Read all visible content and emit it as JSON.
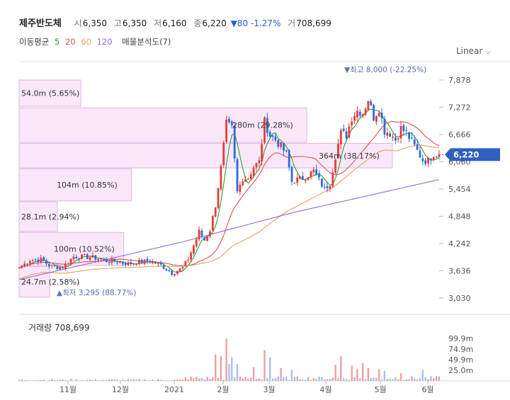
{
  "header": {
    "name": "제주반도체",
    "open_label": "시",
    "open": "6,350",
    "high_label": "고",
    "high": "6,350",
    "low_label": "저",
    "low": "6,160",
    "close_label": "종",
    "close": "6,220",
    "change": "▼80 -1.27%",
    "volume_label": "거",
    "volume": "708,699"
  },
  "legend": {
    "title": "이동평균",
    "ma5": "5",
    "ma20": "20",
    "ma60": "60",
    "ma120": "120",
    "vp": "매물분석도(7)",
    "colors": {
      "ma5": "#2e9e2e",
      "ma20": "#e05050",
      "ma60": "#e8a060",
      "ma120": "#8e6ad8"
    }
  },
  "scale_button": "Linear",
  "colors": {
    "up": "#e83a3a",
    "down": "#2f6ad8",
    "current_tag": "#2f5fc0",
    "vp_fill": "#fae8fa",
    "vp_stroke": "#dfb6df"
  },
  "chart_data": {
    "type": "candlestick",
    "y_ticks": [
      "7,878",
      "7,272",
      "6,666",
      "6,060",
      "5,454",
      "4,848",
      "4,242",
      "3,636",
      "3,030"
    ],
    "ylim": [
      3030,
      7878
    ],
    "x_ticks": [
      "11월",
      "12월",
      "2021",
      "2월",
      "3월",
      "4월",
      "5월",
      "6월"
    ],
    "current_price": "6,220",
    "max_marker": "▼최고 8,000 (-22.25%)",
    "min_marker": "▲최저 3,295 (88.77%)",
    "volume_title": "거래량",
    "volume_value": "708,699",
    "volume_ticks": [
      "99.9m",
      "74.9m",
      "49.9m",
      "25.0m"
    ],
    "volume_profile": [
      {
        "label": "54.0m (5.65%)",
        "lo": 7295,
        "hi": 7878
      },
      {
        "label": "280m (29.28%)",
        "lo": 6495,
        "hi": 7260
      },
      {
        "label": "364m (38.17%)",
        "lo": 5923,
        "hi": 6470
      },
      {
        "label": "104m (10.85%)",
        "lo": 5190,
        "hi": 5900
      },
      {
        "label": "28.1m (2.94%)",
        "lo": 4515,
        "hi": 5170
      },
      {
        "label": "100m (10.52%)",
        "lo": 3755,
        "hi": 4490
      },
      {
        "label": "24.7m (2.58%)",
        "lo": 3050,
        "hi": 3730
      }
    ],
    "anchors": [
      [
        0,
        3700
      ],
      [
        4,
        3880
      ],
      [
        8,
        3880
      ],
      [
        12,
        3720
      ],
      [
        16,
        3720
      ],
      [
        20,
        3950
      ],
      [
        24,
        3950
      ],
      [
        28,
        3920
      ],
      [
        32,
        3860
      ],
      [
        36,
        3840
      ],
      [
        40,
        3790
      ],
      [
        44,
        3830
      ],
      [
        48,
        3850
      ],
      [
        52,
        3760
      ],
      [
        56,
        3590
      ],
      [
        60,
        3700
      ],
      [
        62,
        3900
      ],
      [
        64,
        4200
      ],
      [
        66,
        4500
      ],
      [
        68,
        4320
      ],
      [
        70,
        4550
      ],
      [
        72,
        5100
      ],
      [
        74,
        5920
      ],
      [
        76,
        6900
      ],
      [
        78,
        6800
      ],
      [
        80,
        5380
      ],
      [
        82,
        5700
      ],
      [
        84,
        5700
      ],
      [
        86,
        5950
      ],
      [
        88,
        6050
      ],
      [
        90,
        6950
      ],
      [
        92,
        6650
      ],
      [
        94,
        6550
      ],
      [
        96,
        6400
      ],
      [
        98,
        6220
      ],
      [
        100,
        5620
      ],
      [
        104,
        5700
      ],
      [
        108,
        5850
      ],
      [
        112,
        5450
      ],
      [
        114,
        5600
      ],
      [
        116,
        6200
      ],
      [
        118,
        6700
      ],
      [
        120,
        6650
      ],
      [
        122,
        7050
      ],
      [
        124,
        7200
      ],
      [
        126,
        7150
      ],
      [
        128,
        7450
      ],
      [
        130,
        7050
      ],
      [
        132,
        7250
      ],
      [
        134,
        6750
      ],
      [
        136,
        6700
      ],
      [
        138,
        6550
      ],
      [
        140,
        6800
      ],
      [
        142,
        6700
      ],
      [
        144,
        6500
      ],
      [
        146,
        6300
      ],
      [
        148,
        6100
      ],
      [
        150,
        6080
      ],
      [
        152,
        6250
      ],
      [
        154,
        6220
      ]
    ],
    "volume_spikes": [
      {
        "i": 72,
        "v": 62
      },
      {
        "i": 74,
        "v": 58
      },
      {
        "i": 76,
        "v": 99
      },
      {
        "i": 77,
        "v": 40
      },
      {
        "i": 78,
        "v": 56
      },
      {
        "i": 80,
        "v": 40
      },
      {
        "i": 86,
        "v": 32
      },
      {
        "i": 90,
        "v": 72
      },
      {
        "i": 92,
        "v": 55
      },
      {
        "i": 96,
        "v": 30
      },
      {
        "i": 100,
        "v": 26
      },
      {
        "i": 116,
        "v": 38
      },
      {
        "i": 118,
        "v": 58
      },
      {
        "i": 122,
        "v": 36
      },
      {
        "i": 124,
        "v": 28
      },
      {
        "i": 126,
        "v": 42
      },
      {
        "i": 128,
        "v": 30
      },
      {
        "i": 132,
        "v": 27
      },
      {
        "i": 134,
        "v": 24
      },
      {
        "i": 140,
        "v": 18
      },
      {
        "i": 148,
        "v": 26
      }
    ]
  }
}
